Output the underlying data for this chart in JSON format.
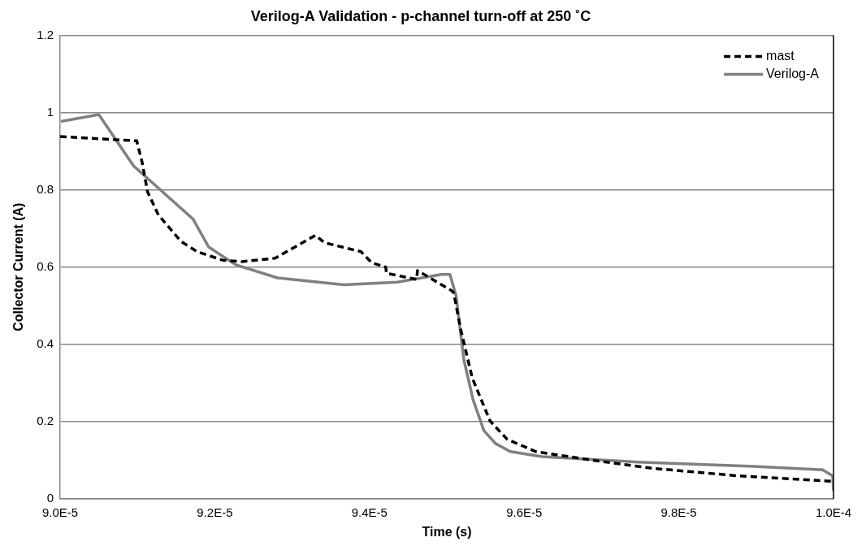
{
  "chart_data": {
    "type": "line",
    "title": "Verilog-A Validation - p-channel turn-off at 250 ˚C",
    "xlabel": "Time (s)",
    "ylabel": "Collector Current (A)",
    "xlim": [
      9e-05,
      0.0001
    ],
    "xticks": [
      {
        "value": 9e-05,
        "label": "9.0E-5"
      },
      {
        "value": 9.2e-05,
        "label": "9.2E-5"
      },
      {
        "value": 9.4e-05,
        "label": "9.4E-5"
      },
      {
        "value": 9.6e-05,
        "label": "9.6E-5"
      },
      {
        "value": 9.8e-05,
        "label": "9.8E-5"
      },
      {
        "value": 0.0001,
        "label": "1.0E-4"
      }
    ],
    "ylim": [
      0,
      1.2
    ],
    "yticks": [
      0,
      0.2,
      0.4,
      0.6,
      0.8,
      1,
      1.2
    ],
    "grid": "y",
    "legend": "top right",
    "marker": "none",
    "series": [
      {
        "name": "mast",
        "color": "#000000",
        "line_style": "dashed",
        "x": [
          9e-05,
          9.099e-05,
          9.106e-05,
          9.113e-05,
          9.127e-05,
          9.156e-05,
          9.177e-05,
          9.21e-05,
          9.235e-05,
          9.278e-05,
          9.33e-05,
          9.342e-05,
          9.389e-05,
          9.403e-05,
          9.421e-05,
          9.422e-05,
          9.439e-05,
          9.461e-05,
          9.462e-05,
          9.507e-05,
          9.509e-05,
          9.518e-05,
          9.533e-05,
          9.556e-05,
          9.578e-05,
          9.615e-05,
          9.691e-05,
          9.765e-05,
          9.878e-05,
          9.999e-05
        ],
        "values": [
          0.938,
          0.927,
          0.871,
          0.795,
          0.735,
          0.667,
          0.64,
          0.618,
          0.614,
          0.623,
          0.682,
          0.663,
          0.64,
          0.611,
          0.6,
          0.584,
          0.577,
          0.568,
          0.591,
          0.538,
          0.532,
          0.438,
          0.312,
          0.201,
          0.154,
          0.122,
          0.099,
          0.079,
          0.059,
          0.045
        ]
      },
      {
        "name": "Verilog-A",
        "color": "#808080",
        "line_style": "solid",
        "x": [
          9.001e-05,
          9.05e-05,
          9.095e-05,
          9.172e-05,
          9.192e-05,
          9.227e-05,
          9.281e-05,
          9.367e-05,
          9.436e-05,
          9.493e-05,
          9.504e-05,
          9.512e-05,
          9.522e-05,
          9.534e-05,
          9.548e-05,
          9.563e-05,
          9.582e-05,
          9.623e-05,
          9.747e-05,
          9.897e-05,
          9.986e-05,
          9.999e-05,
          0.0001
        ],
        "values": [
          0.977,
          0.995,
          0.862,
          0.724,
          0.652,
          0.606,
          0.572,
          0.554,
          0.561,
          0.581,
          0.581,
          0.525,
          0.36,
          0.256,
          0.176,
          0.143,
          0.122,
          0.109,
          0.095,
          0.084,
          0.075,
          0.059,
          0.02
        ]
      }
    ]
  }
}
